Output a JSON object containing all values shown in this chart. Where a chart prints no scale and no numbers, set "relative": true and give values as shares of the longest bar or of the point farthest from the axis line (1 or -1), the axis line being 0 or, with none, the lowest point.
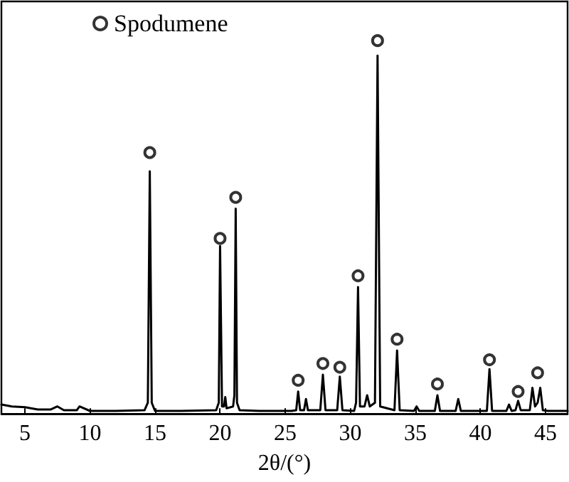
{
  "chart_data": {
    "type": "line",
    "xlabel": "2θ/(°)",
    "relative": true,
    "grid": false,
    "legend": "top",
    "tick_labels": "x",
    "xlim": [
      3.2,
      46.7
    ],
    "xticks": [
      5,
      10,
      15,
      20,
      25,
      30,
      35,
      40,
      45
    ],
    "series": [
      {
        "color": "#000000",
        "marker": "none",
        "x": [
          3.2,
          4,
          5,
          6,
          7,
          7.5,
          8,
          9,
          9.2,
          10,
          12,
          14.2,
          14.45,
          14.6,
          14.75,
          15,
          17,
          19.7,
          19.9,
          20.0,
          20.15,
          20.3,
          20.4,
          20.5,
          21.0,
          21.1,
          21.2,
          21.3,
          21.5,
          23,
          25.5,
          25.85,
          26.0,
          26.15,
          26.45,
          26.6,
          26.75,
          27.7,
          27.9,
          28.1,
          29.0,
          29.2,
          29.4,
          30.3,
          30.45,
          30.6,
          30.75,
          31.1,
          31.3,
          31.5,
          31.9,
          32.1,
          32.3,
          33.4,
          33.6,
          33.8,
          34.9,
          35.1,
          35.3,
          36.5,
          36.7,
          36.9,
          38.1,
          38.3,
          38.5,
          40.5,
          40.7,
          40.9,
          42.0,
          42.2,
          42.4,
          42.7,
          42.9,
          43.1,
          43.8,
          44.0,
          44.2,
          44.4,
          44.6,
          44.8,
          45.2,
          46.7
        ],
        "values": [
          0.025,
          0.02,
          0.018,
          0.012,
          0.012,
          0.02,
          0.01,
          0.01,
          0.02,
          0.008,
          0.008,
          0.01,
          0.03,
          0.65,
          0.03,
          0.008,
          0.008,
          0.01,
          0.03,
          0.45,
          0.02,
          0.02,
          0.045,
          0.015,
          0.02,
          0.05,
          0.55,
          0.03,
          0.01,
          0.008,
          0.008,
          0.01,
          0.06,
          0.01,
          0.01,
          0.04,
          0.01,
          0.01,
          0.105,
          0.01,
          0.01,
          0.1,
          0.01,
          0.008,
          0.03,
          0.34,
          0.02,
          0.02,
          0.05,
          0.02,
          0.03,
          0.96,
          0.02,
          0.01,
          0.17,
          0.01,
          0.008,
          0.02,
          0.008,
          0.008,
          0.05,
          0.008,
          0.008,
          0.04,
          0.008,
          0.008,
          0.12,
          0.008,
          0.008,
          0.025,
          0.008,
          0.01,
          0.035,
          0.01,
          0.01,
          0.07,
          0.02,
          0.03,
          0.07,
          0.01,
          0.008,
          0.008
        ]
      },
      {
        "type": "scatter",
        "name": "Spodumene",
        "color": "#000000",
        "marker": "circle",
        "x": [
          14.6,
          20.0,
          21.2,
          26.0,
          27.9,
          29.2,
          30.6,
          32.1,
          33.6,
          36.7,
          40.7,
          42.9,
          44.4
        ],
        "values": [
          0.7,
          0.47,
          0.58,
          0.09,
          0.135,
          0.125,
          0.37,
          1.0,
          0.2,
          0.08,
          0.145,
          0.06,
          0.11
        ]
      }
    ]
  }
}
